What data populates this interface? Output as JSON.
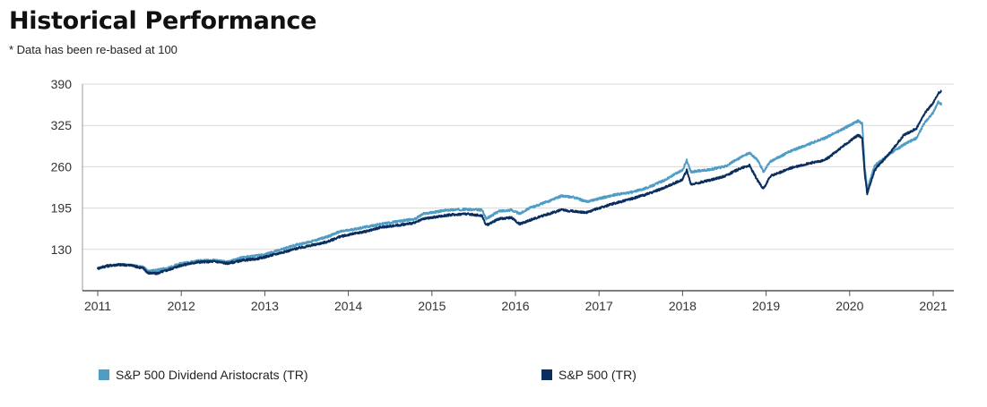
{
  "title": "Historical Performance",
  "subtitle": "* Data has been re-based at 100",
  "chart_data": {
    "type": "line",
    "xlim": [
      2011,
      2021.1
    ],
    "ylim": [
      65,
      390
    ],
    "yticks": [
      130,
      195,
      260,
      325,
      390
    ],
    "xticks": [
      2011,
      2012,
      2013,
      2014,
      2015,
      2016,
      2017,
      2018,
      2019,
      2020,
      2021
    ],
    "grid": true,
    "legend_position": "bottom",
    "series": [
      {
        "name": "S&P 500 Dividend Aristocrats (TR)",
        "color": "#4f9cc4",
        "points": [
          [
            2011.0,
            100
          ],
          [
            2011.1,
            103
          ],
          [
            2011.25,
            106
          ],
          [
            2011.4,
            105
          ],
          [
            2011.55,
            102
          ],
          [
            2011.6,
            96
          ],
          [
            2011.7,
            97
          ],
          [
            2011.85,
            101
          ],
          [
            2012.0,
            108
          ],
          [
            2012.2,
            112
          ],
          [
            2012.4,
            113
          ],
          [
            2012.55,
            110
          ],
          [
            2012.75,
            118
          ],
          [
            2012.9,
            120
          ],
          [
            2013.0,
            122
          ],
          [
            2013.2,
            130
          ],
          [
            2013.4,
            138
          ],
          [
            2013.55,
            142
          ],
          [
            2013.75,
            150
          ],
          [
            2013.9,
            158
          ],
          [
            2014.0,
            160
          ],
          [
            2014.2,
            165
          ],
          [
            2014.4,
            170
          ],
          [
            2014.6,
            174
          ],
          [
            2014.8,
            178
          ],
          [
            2014.9,
            186
          ],
          [
            2015.0,
            188
          ],
          [
            2015.2,
            192
          ],
          [
            2015.4,
            193
          ],
          [
            2015.6,
            192
          ],
          [
            2015.65,
            178
          ],
          [
            2015.8,
            190
          ],
          [
            2015.95,
            192
          ],
          [
            2016.05,
            186
          ],
          [
            2016.15,
            194
          ],
          [
            2016.4,
            206
          ],
          [
            2016.55,
            214
          ],
          [
            2016.7,
            212
          ],
          [
            2016.85,
            205
          ],
          [
            2017.0,
            210
          ],
          [
            2017.2,
            216
          ],
          [
            2017.4,
            220
          ],
          [
            2017.6,
            228
          ],
          [
            2017.8,
            240
          ],
          [
            2018.0,
            255
          ],
          [
            2018.05,
            270
          ],
          [
            2018.1,
            252
          ],
          [
            2018.3,
            255
          ],
          [
            2018.5,
            260
          ],
          [
            2018.7,
            275
          ],
          [
            2018.8,
            282
          ],
          [
            2018.9,
            270
          ],
          [
            2018.97,
            252
          ],
          [
            2019.05,
            268
          ],
          [
            2019.3,
            285
          ],
          [
            2019.5,
            295
          ],
          [
            2019.7,
            305
          ],
          [
            2019.9,
            318
          ],
          [
            2020.1,
            332
          ],
          [
            2020.15,
            328
          ],
          [
            2020.18,
            260
          ],
          [
            2020.21,
            225
          ],
          [
            2020.3,
            262
          ],
          [
            2020.5,
            282
          ],
          [
            2020.65,
            295
          ],
          [
            2020.8,
            305
          ],
          [
            2020.9,
            330
          ],
          [
            2021.0,
            345
          ],
          [
            2021.06,
            362
          ],
          [
            2021.1,
            358
          ]
        ]
      },
      {
        "name": "S&P 500 (TR)",
        "color": "#0b2e5e",
        "points": [
          [
            2011.0,
            100
          ],
          [
            2011.1,
            104
          ],
          [
            2011.25,
            106
          ],
          [
            2011.4,
            105
          ],
          [
            2011.55,
            100
          ],
          [
            2011.6,
            93
          ],
          [
            2011.7,
            92
          ],
          [
            2011.85,
            98
          ],
          [
            2012.0,
            105
          ],
          [
            2012.2,
            110
          ],
          [
            2012.4,
            111
          ],
          [
            2012.55,
            108
          ],
          [
            2012.75,
            113
          ],
          [
            2012.9,
            115
          ],
          [
            2013.0,
            118
          ],
          [
            2013.2,
            125
          ],
          [
            2013.4,
            132
          ],
          [
            2013.55,
            136
          ],
          [
            2013.75,
            142
          ],
          [
            2013.9,
            150
          ],
          [
            2014.0,
            153
          ],
          [
            2014.2,
            158
          ],
          [
            2014.4,
            165
          ],
          [
            2014.6,
            168
          ],
          [
            2014.8,
            172
          ],
          [
            2014.9,
            178
          ],
          [
            2015.0,
            180
          ],
          [
            2015.2,
            184
          ],
          [
            2015.4,
            186
          ],
          [
            2015.6,
            183
          ],
          [
            2015.65,
            168
          ],
          [
            2015.8,
            178
          ],
          [
            2015.95,
            180
          ],
          [
            2016.05,
            170
          ],
          [
            2016.15,
            175
          ],
          [
            2016.4,
            186
          ],
          [
            2016.55,
            192
          ],
          [
            2016.7,
            190
          ],
          [
            2016.85,
            188
          ],
          [
            2017.0,
            195
          ],
          [
            2017.2,
            203
          ],
          [
            2017.4,
            210
          ],
          [
            2017.6,
            218
          ],
          [
            2017.8,
            228
          ],
          [
            2018.0,
            240
          ],
          [
            2018.05,
            255
          ],
          [
            2018.1,
            232
          ],
          [
            2018.3,
            238
          ],
          [
            2018.5,
            245
          ],
          [
            2018.7,
            258
          ],
          [
            2018.8,
            262
          ],
          [
            2018.9,
            238
          ],
          [
            2018.97,
            225
          ],
          [
            2019.05,
            245
          ],
          [
            2019.3,
            258
          ],
          [
            2019.5,
            265
          ],
          [
            2019.7,
            270
          ],
          [
            2019.9,
            290
          ],
          [
            2020.1,
            310
          ],
          [
            2020.15,
            305
          ],
          [
            2020.18,
            250
          ],
          [
            2020.21,
            218
          ],
          [
            2020.3,
            255
          ],
          [
            2020.5,
            285
          ],
          [
            2020.65,
            310
          ],
          [
            2020.8,
            320
          ],
          [
            2020.9,
            345
          ],
          [
            2021.0,
            360
          ],
          [
            2021.06,
            375
          ],
          [
            2021.1,
            380
          ]
        ]
      }
    ]
  }
}
